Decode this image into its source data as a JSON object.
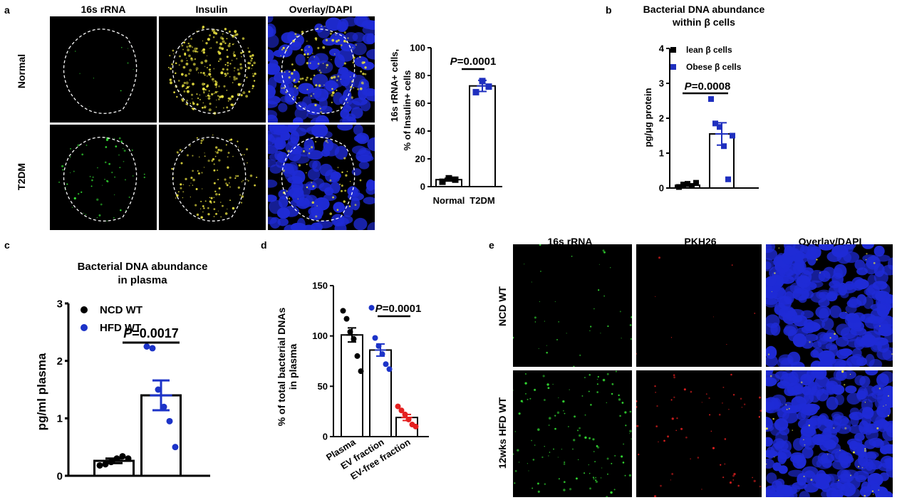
{
  "panel_letters": {
    "a": "a",
    "b": "b",
    "c": "c",
    "d": "d",
    "e": "e"
  },
  "panel_a": {
    "columns": [
      "16s rRNA",
      "Insulin",
      "Overlay/DAPI"
    ],
    "rows": [
      "Normal",
      "T2DM"
    ]
  },
  "panel_e": {
    "columns": [
      "16s rRNA",
      "PKH26",
      "Overlay/DAPI"
    ],
    "rows": [
      "NCD WT",
      "12wks HFD WT"
    ]
  },
  "colors": {
    "black": "#000000",
    "blue": "#1f2fbf",
    "blue_circle": "#1c33c8",
    "red": "#e52020",
    "green": "#33dd33",
    "yellow": "#e8e040",
    "dapi": "#1f2bd6"
  },
  "chart_data": [
    {
      "panel": "a",
      "type": "bar",
      "categories": [
        "Normal",
        "T2DM"
      ],
      "values": [
        5,
        72.5
      ],
      "sem": [
        1,
        4
      ],
      "points": [
        [
          3.5,
          6,
          5
        ],
        [
          68,
          76,
          72
        ]
      ],
      "ylabel_line1": "16s rRNA+ cells,",
      "ylabel_line2": "% of Insulin+ cells",
      "ylim": [
        0,
        100
      ],
      "yticks": [
        "0",
        "20",
        "40",
        "60",
        "80",
        "100"
      ],
      "pvalue_prefix": "P",
      "pvalue_value": "=0.0001",
      "marker": "square"
    },
    {
      "panel": "b",
      "type": "bar",
      "categories": [
        "lean β cells",
        "Obese β cells"
      ],
      "values": [
        0.08,
        1.55
      ],
      "sem": [
        0.03,
        0.32
      ],
      "points": [
        [
          0.03,
          0.1,
          0.12,
          0.06,
          0.15
        ],
        [
          2.55,
          1.85,
          1.75,
          1.2,
          0.25,
          1.5
        ]
      ],
      "title_line1": "Bacterial DNA abundance",
      "title_line2": "within β cells",
      "ylabel": "pg/μg protein",
      "ylim": [
        0,
        4
      ],
      "yticks": [
        "0",
        "1",
        "2",
        "3",
        "4"
      ],
      "legend": [
        "lean β cells",
        "Obese β cells"
      ],
      "pvalue_prefix": "P",
      "pvalue_value": "=0.0008",
      "marker": "square"
    },
    {
      "panel": "c",
      "type": "bar",
      "categories": [
        "NCD WT",
        "HFD WT"
      ],
      "values": [
        0.26,
        1.4
      ],
      "sem": [
        0.04,
        0.26
      ],
      "points": [
        [
          0.18,
          0.2,
          0.24,
          0.3,
          0.34,
          0.3
        ],
        [
          2.25,
          2.22,
          1.5,
          1.2,
          0.95,
          0.5
        ]
      ],
      "title_line1": "Bacterial DNA abundance",
      "title_line2": "in plasma",
      "ylabel": "pg/ml plasma",
      "ylim": [
        0,
        3
      ],
      "yticks": [
        "0",
        "1",
        "2",
        "3"
      ],
      "legend": [
        "NCD WT",
        "HFD WT"
      ],
      "pvalue_prefix": "P",
      "pvalue_value": "=0.0017",
      "marker": "circle"
    },
    {
      "panel": "d",
      "type": "bar",
      "categories": [
        "Plasma",
        "EV fraction",
        "EV-free fraction"
      ],
      "values": [
        101,
        86,
        19
      ],
      "sem": [
        7,
        6,
        3
      ],
      "points": [
        [
          125,
          117,
          104,
          97,
          80,
          65
        ],
        [
          128,
          98,
          90,
          82,
          72,
          67
        ],
        [
          30,
          26,
          22,
          17,
          12,
          10
        ]
      ],
      "ylabel_line1": "% of total bacterial DNAs",
      "ylabel_line2": "in plasma",
      "ylim": [
        0,
        150
      ],
      "yticks": [
        "0",
        "50",
        "100",
        "150"
      ],
      "pvalue_prefix": "P",
      "pvalue_value": "=0.0001",
      "marker": "circle"
    }
  ]
}
